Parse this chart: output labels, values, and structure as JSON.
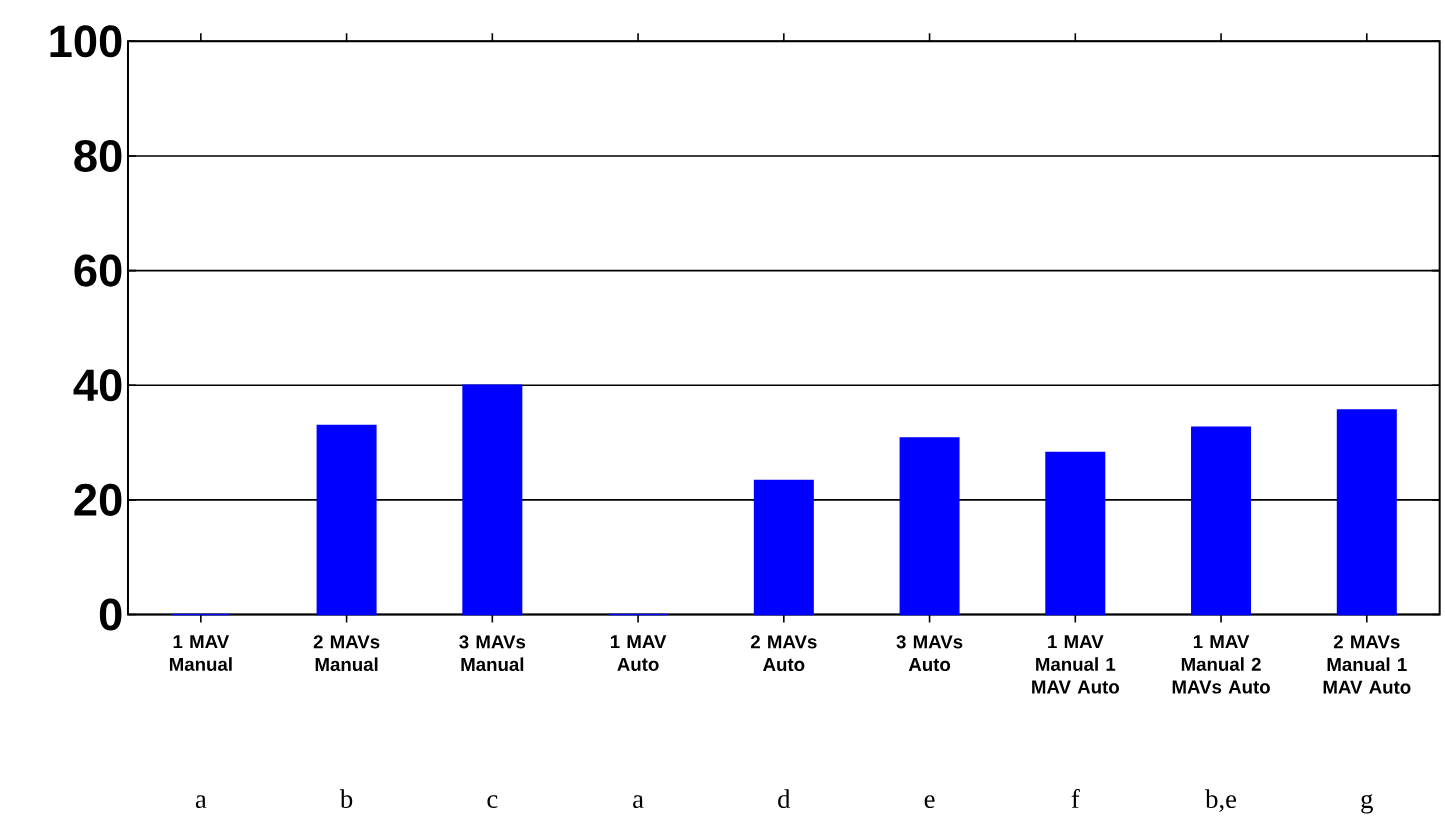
{
  "chart_data": {
    "type": "bar",
    "categories": [
      "1 MAV Manual",
      "2 MAVs Manual",
      "3 MAVs Manual",
      "1 MAV Auto",
      "2 MAVs Auto",
      "3 MAVs Auto",
      "1 MAV Manual 1 MAV Auto",
      "1 MAV Manual 2 MAVs Auto",
      "2 MAVs Manual 1 MAV Auto"
    ],
    "values": [
      0,
      33,
      40,
      0,
      23.4,
      30.8,
      28.3,
      32.7,
      35.7
    ],
    "color": "#0000ff",
    "ylim": [
      0,
      100
    ],
    "yticks": [
      0,
      20,
      40,
      60,
      80,
      100
    ],
    "grid": "y",
    "annotations": [
      "a",
      "b",
      "c",
      "a",
      "d",
      "e",
      "f",
      "b,e",
      "g"
    ]
  }
}
